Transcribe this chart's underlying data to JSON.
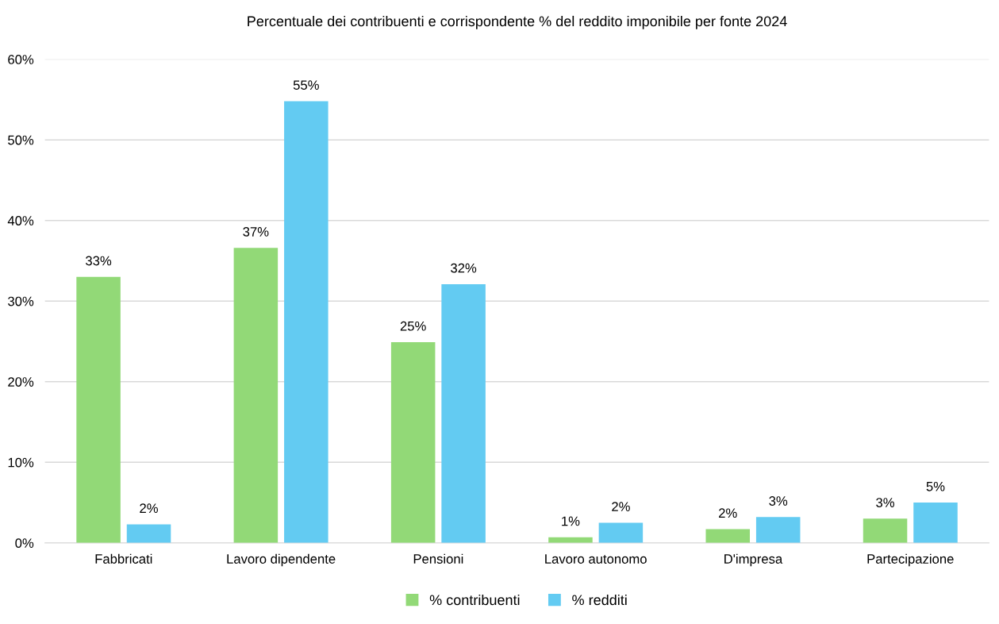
{
  "chart_data": {
    "type": "bar",
    "title": "Percentuale dei contribuenti e corrispondente % del reddito imponibile per fonte 2024",
    "categories": [
      "Fabbricati",
      "Lavoro dipendente",
      "Pensioni",
      "Lavoro autonomo",
      "D'impresa",
      "Partecipazione"
    ],
    "series": [
      {
        "name": "% contribuenti",
        "color": "#92d977",
        "values": [
          33.0,
          36.6,
          24.9,
          0.7,
          1.7,
          3.0
        ],
        "value_labels": [
          "33%",
          "37%",
          "25%",
          "1%",
          "2%",
          "3%"
        ]
      },
      {
        "name": "% redditi",
        "color": "#63cbf2",
        "values": [
          2.3,
          54.8,
          32.1,
          2.5,
          3.2,
          5.0
        ],
        "value_labels": [
          "2%",
          "55%",
          "32%",
          "2%",
          "3%",
          "5%"
        ]
      }
    ],
    "ylim": [
      0,
      60
    ],
    "yticks": [
      {
        "value": 0,
        "label": "0%"
      },
      {
        "value": 10,
        "label": "10%"
      },
      {
        "value": 20,
        "label": "20%"
      },
      {
        "value": 30,
        "label": "30%"
      },
      {
        "value": 40,
        "label": "40%"
      },
      {
        "value": 50,
        "label": "50%"
      },
      {
        "value": 60,
        "label": "60%"
      }
    ],
    "grid": "y",
    "legend": "bottom"
  }
}
